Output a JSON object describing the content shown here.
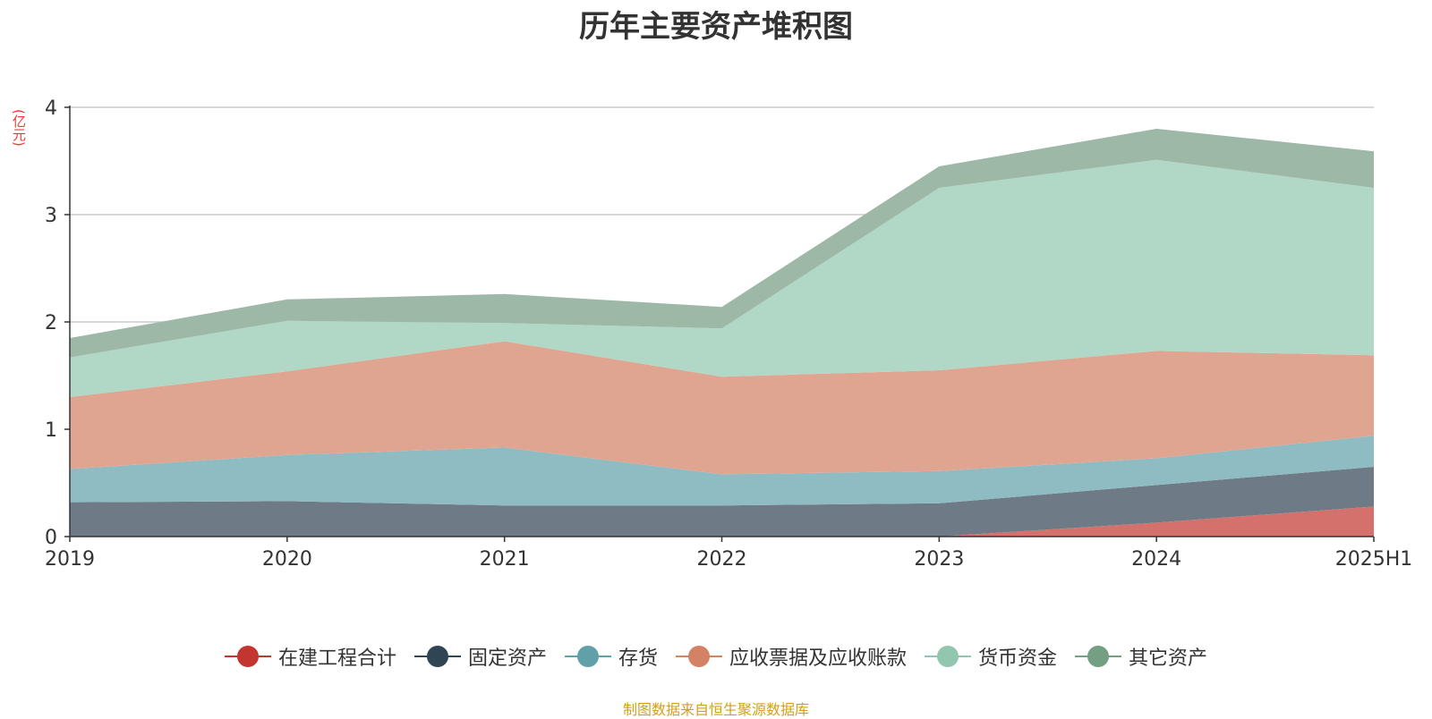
{
  "title": "历年主要资产堆积图",
  "unit": "(亿元)",
  "source": "制图数据来自恒生聚源数据库",
  "chart_data": {
    "type": "area",
    "stacked": true,
    "title": "历年主要资产堆积图",
    "ylabel": "(亿元)",
    "x": [
      "2019",
      "2020",
      "2021",
      "2022",
      "2023",
      "2024",
      "2025H1"
    ],
    "ylim": [
      0,
      4
    ],
    "yticks": [
      0,
      1,
      2,
      3,
      4
    ],
    "grid": true,
    "legend_position": "bottom",
    "series": [
      {
        "name": "在建工程合计",
        "color": "#c23531",
        "fill": "#d4716d",
        "values": [
          0,
          0,
          0,
          0,
          0,
          0.13,
          0.28
        ]
      },
      {
        "name": "固定资产",
        "color": "#2f4554",
        "fill": "#6e7b86",
        "values": [
          0.32,
          0.33,
          0.29,
          0.29,
          0.31,
          0.35,
          0.37
        ]
      },
      {
        "name": "存货",
        "color": "#61a0a8",
        "fill": "#8fbbc2",
        "values": [
          0.31,
          0.43,
          0.54,
          0.29,
          0.3,
          0.25,
          0.29
        ]
      },
      {
        "name": "应收票据及应收账款",
        "color": "#d48265",
        "fill": "#e0a591",
        "values": [
          0.67,
          0.78,
          0.99,
          0.91,
          0.94,
          1.0,
          0.75
        ]
      },
      {
        "name": "货币资金",
        "color": "#91c7ae",
        "fill": "#b1d7c6",
        "values": [
          0.37,
          0.47,
          0.17,
          0.45,
          1.7,
          1.78,
          1.56
        ]
      },
      {
        "name": "其它资产",
        "color": "#749f83",
        "fill": "#9db8a7",
        "values": [
          0.18,
          0.2,
          0.27,
          0.2,
          0.2,
          0.29,
          0.34
        ]
      }
    ]
  }
}
